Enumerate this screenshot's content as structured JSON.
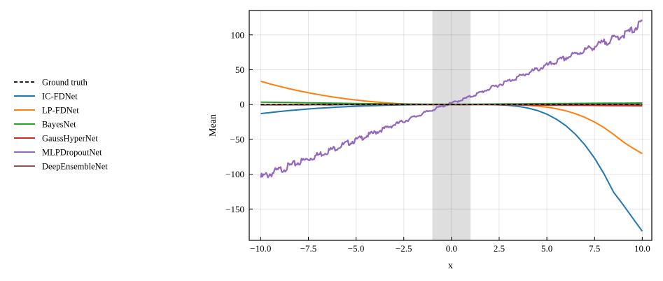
{
  "chart_data": {
    "type": "line",
    "title": "",
    "xlabel": "x",
    "ylabel": "Mean",
    "xlim": [
      -10.6,
      10.5
    ],
    "ylim": [
      -195,
      135
    ],
    "xticks": [
      -10.0,
      -7.5,
      -5.0,
      -2.5,
      0.0,
      2.5,
      5.0,
      7.5,
      10.0
    ],
    "xtick_labels": [
      "−10.0",
      "−7.5",
      "−5.0",
      "−2.5",
      "0.0",
      "2.5",
      "5.0",
      "7.5",
      "10.0"
    ],
    "yticks": [
      -150,
      -100,
      -50,
      0,
      50,
      100
    ],
    "ytick_labels": [
      "−150",
      "−100",
      "−50",
      "0",
      "50",
      "100"
    ],
    "grid": true,
    "legend_position": "outside-left",
    "shaded_region": {
      "x_start": -1.0,
      "x_end": 1.0,
      "color": "#dedede"
    },
    "x": [
      -10,
      -9.5,
      -9,
      -8.5,
      -8,
      -7.5,
      -7,
      -6.5,
      -6,
      -5.5,
      -5,
      -4.5,
      -4,
      -3.5,
      -3,
      -2.5,
      -2,
      -1.5,
      -1,
      -0.5,
      0,
      0.5,
      1,
      1.5,
      2,
      2.5,
      3,
      3.5,
      4,
      4.5,
      5,
      5.5,
      6,
      6.5,
      7,
      7.5,
      8,
      8.5,
      9,
      9.5,
      10
    ],
    "series": [
      {
        "name": "Ground truth",
        "color": "#000000",
        "dashed": true,
        "values": [
          0,
          0,
          0,
          0,
          0,
          0,
          0,
          0,
          0,
          0,
          0,
          0,
          0,
          0,
          0,
          0,
          0,
          0,
          0,
          0,
          0,
          0,
          0,
          0,
          0,
          0,
          0,
          0,
          0,
          0,
          0,
          0,
          0,
          0,
          0,
          0,
          0,
          0,
          0,
          0,
          0
        ]
      },
      {
        "name": "IC-FDNet",
        "color": "#1f77b4",
        "values": [
          -13,
          -11.5,
          -10,
          -8.7,
          -7.5,
          -6.4,
          -5.4,
          -4.5,
          -3.7,
          -3,
          -2.4,
          -1.9,
          -1.5,
          -1.1,
          -0.8,
          -0.5,
          -0.3,
          -0.1,
          0,
          0,
          0,
          0,
          0,
          0,
          0,
          -0.4,
          -1.2,
          -2.6,
          -5,
          -8.6,
          -13.8,
          -21,
          -30.5,
          -42.8,
          -58.2,
          -77,
          -99.7,
          -126,
          -144,
          -163,
          -182
        ]
      },
      {
        "name": "LP-FDNet",
        "color": "#ff7f0e",
        "values": [
          33.5,
          29.5,
          26,
          22.7,
          19.7,
          16.9,
          14.4,
          12.1,
          10,
          8.1,
          6.4,
          5,
          3.7,
          2.6,
          1.7,
          1,
          0.5,
          0.2,
          0,
          0,
          0,
          0,
          0,
          0,
          0,
          -0.1,
          -0.3,
          -0.6,
          -1.2,
          -2.2,
          -3.7,
          -6,
          -9.1,
          -13.2,
          -18.5,
          -25.1,
          -33.2,
          -42.9,
          -53.5,
          -62.5,
          -70.5
        ]
      },
      {
        "name": "BayesNet",
        "color": "#2ca02c",
        "values": [
          3.5,
          3.3,
          3.1,
          2.9,
          2.7,
          2.5,
          2.3,
          2.1,
          1.9,
          1.7,
          1.5,
          1.3,
          1.2,
          1,
          0.9,
          0.8,
          0.7,
          0.6,
          0.5,
          0.4,
          0.4,
          0.4,
          0.5,
          0.6,
          0.7,
          0.8,
          0.9,
          1,
          1.1,
          1.2,
          1.3,
          1.4,
          1.5,
          1.6,
          1.7,
          1.8,
          1.9,
          2,
          2,
          2.1,
          2.2
        ]
      },
      {
        "name": "GaussHyperNet",
        "color": "#d62728",
        "values": [
          0,
          -0.2,
          0.2,
          -0.1,
          0.3,
          -0.2,
          0.1,
          0.3,
          -0.1,
          0.2,
          -0.3,
          0.1,
          0.2,
          -0.1,
          0.1,
          0.3,
          -0.2,
          0.1,
          -0.1,
          0.2,
          0,
          -0.3,
          -0.1,
          0.2,
          -0.2,
          -0.4,
          -0.3,
          -0.6,
          -0.5,
          -0.7,
          -0.8,
          -0.9,
          -1,
          -1.1,
          -1.2,
          -1.3,
          -1.4,
          -1.5,
          -1.6,
          -1.7,
          -1.8
        ]
      },
      {
        "name": "MLPDropoutNet",
        "color": "#9467bd",
        "noisy": true,
        "values": [
          -105,
          -99.5,
          -94,
          -88.5,
          -83,
          -78,
          -72.5,
          -67,
          -61.5,
          -56,
          -51,
          -45.5,
          -40,
          -34.5,
          -29,
          -24,
          -18.5,
          -13,
          -7.5,
          -2.5,
          2,
          6.5,
          11.5,
          17,
          23,
          28.5,
          34,
          39.5,
          45,
          50.5,
          56,
          61.5,
          67,
          72.5,
          78,
          83.5,
          89,
          94.5,
          100,
          107,
          118
        ]
      },
      {
        "name": "DeepEnsembleNet",
        "color": "#8c564b",
        "values": [
          -0.5,
          -0.4,
          -0.6,
          -0.3,
          -0.5,
          -0.4,
          -0.2,
          -0.5,
          -0.3,
          -0.1,
          -0.2,
          -0.3,
          0,
          -0.1,
          0.1,
          0,
          0.1,
          -0.1,
          0,
          0.1,
          0,
          -0.1,
          0,
          0.1,
          0,
          -0.1,
          0.1,
          0,
          0.2,
          0.1,
          0,
          0.2,
          0.1,
          0.3,
          0.2,
          0.1,
          0.3,
          0.2,
          0.4,
          0.3,
          0.3
        ]
      }
    ]
  }
}
